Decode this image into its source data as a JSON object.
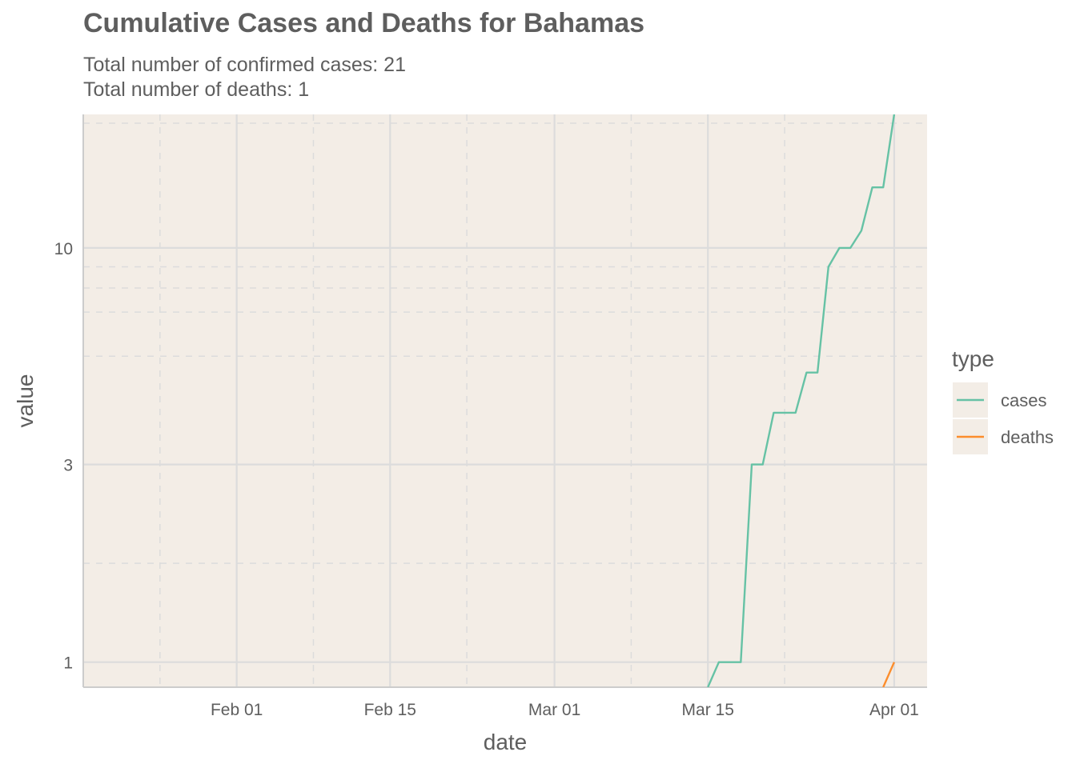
{
  "chart_data": {
    "type": "line",
    "title": "Cumulative Cases and Deaths for Bahamas",
    "subtitle_lines": [
      "Total number of confirmed cases: 21",
      "Total number of deaths: 1"
    ],
    "xlabel": "date",
    "ylabel": "value",
    "x_scale": "date",
    "y_scale": "log10",
    "xlim": [
      "2020-01-18",
      "2020-04-04"
    ],
    "ylim": [
      0.87,
      21
    ],
    "x_ticks": [
      {
        "date": "2020-02-01",
        "label": "Feb 01"
      },
      {
        "date": "2020-02-15",
        "label": "Feb 15"
      },
      {
        "date": "2020-03-01",
        "label": "Mar 01"
      },
      {
        "date": "2020-03-15",
        "label": "Mar 15"
      },
      {
        "date": "2020-04-01",
        "label": "Apr 01"
      }
    ],
    "x_minor_ticks": [
      "2020-01-25",
      "2020-02-08",
      "2020-02-22",
      "2020-03-08",
      "2020-03-22"
    ],
    "y_ticks": [
      {
        "value": 1,
        "label": "1"
      },
      {
        "value": 3,
        "label": "3"
      },
      {
        "value": 10,
        "label": "10"
      }
    ],
    "y_minor_ticks": [
      1.732,
      5.477,
      7,
      8,
      9,
      20
    ],
    "grid": true,
    "legend": {
      "title": "type",
      "position": "right"
    },
    "series": [
      {
        "name": "cases",
        "color": "#66c2a5",
        "points": [
          {
            "x": "2020-03-15",
            "y": 0.87
          },
          {
            "x": "2020-03-16",
            "y": 1
          },
          {
            "x": "2020-03-17",
            "y": 1
          },
          {
            "x": "2020-03-18",
            "y": 1
          },
          {
            "x": "2020-03-19",
            "y": 3
          },
          {
            "x": "2020-03-20",
            "y": 3
          },
          {
            "x": "2020-03-21",
            "y": 4
          },
          {
            "x": "2020-03-22",
            "y": 4
          },
          {
            "x": "2020-03-23",
            "y": 4
          },
          {
            "x": "2020-03-24",
            "y": 5
          },
          {
            "x": "2020-03-25",
            "y": 5
          },
          {
            "x": "2020-03-26",
            "y": 9
          },
          {
            "x": "2020-03-27",
            "y": 10
          },
          {
            "x": "2020-03-28",
            "y": 10
          },
          {
            "x": "2020-03-29",
            "y": 11
          },
          {
            "x": "2020-03-30",
            "y": 14
          },
          {
            "x": "2020-03-31",
            "y": 14
          },
          {
            "x": "2020-04-01",
            "y": 21
          }
        ]
      },
      {
        "name": "deaths",
        "color": "#fc8d2c",
        "points": [
          {
            "x": "2020-03-31",
            "y": 0.87
          },
          {
            "x": "2020-04-01",
            "y": 1
          }
        ]
      }
    ],
    "panel_background": "#f3ede6",
    "grid_color": "#dcdcdc"
  }
}
